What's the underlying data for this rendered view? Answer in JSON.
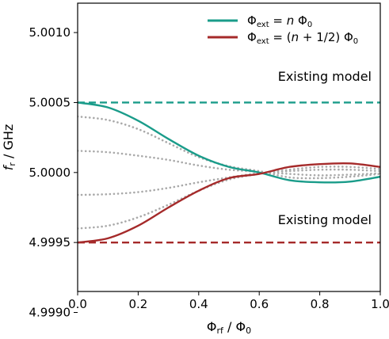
{
  "chart_data": {
    "type": "line",
    "xlabel": "Φrf / Φ0",
    "ylabel": "fr / GHz",
    "xlim": [
      0.0,
      1.0
    ],
    "ylim": [
      4.99915,
      5.00121
    ],
    "x_ticks": [
      "0.0",
      "0.2",
      "0.4",
      "0.6",
      "0.8",
      "1.0"
    ],
    "y_ticks": [
      "4.9990",
      "4.9995",
      "5.0000",
      "5.0005",
      "5.0010"
    ],
    "x_tick_values": [
      0.0,
      0.2,
      0.4,
      0.6,
      0.8,
      1.0
    ],
    "y_tick_values": [
      4.999,
      4.9995,
      5.0,
      5.0005,
      5.001
    ],
    "grid": false,
    "legend_position": "top-right",
    "colors": {
      "teal": "#1a9c8a",
      "red": "#a52a2a",
      "gray": "#a9a9a9"
    },
    "x": [
      0.0,
      0.1,
      0.2,
      0.3,
      0.4,
      0.5,
      0.6,
      0.7,
      0.8,
      0.9,
      1.0
    ],
    "series": [
      {
        "name": "Φext = n Φ0",
        "style": "solid",
        "color": "#1a9c8a",
        "legend": true,
        "values": [
          5.0005,
          5.000465,
          5.00037,
          5.00024,
          5.00012,
          5.00004,
          5.0,
          4.999945,
          4.99993,
          4.999935,
          4.99997
        ]
      },
      {
        "name": "Φext = (n + 1/2) Φ0",
        "style": "solid",
        "color": "#a52a2a",
        "legend": true,
        "values": [
          4.9995,
          4.99953,
          4.99962,
          4.99975,
          4.99987,
          4.99996,
          4.99999,
          5.00004,
          5.00006,
          5.000065,
          5.00004
        ]
      },
      {
        "style": "dotted",
        "color": "#a9a9a9",
        "legend": false,
        "values": [
          5.0004,
          5.000375,
          5.00031,
          5.00021,
          5.00011,
          5.000045,
          5.00001,
          4.999965,
          4.99996,
          4.99997,
          4.99999
        ]
      },
      {
        "style": "dotted",
        "color": "#a9a9a9",
        "legend": false,
        "values": [
          5.000155,
          5.000145,
          5.00012,
          5.00009,
          5.00005,
          5.00002,
          5.000005,
          4.99999,
          4.99998,
          4.999985,
          4.999995
        ]
      },
      {
        "style": "dotted",
        "color": "#a9a9a9",
        "legend": false,
        "values": [
          4.99984,
          4.999845,
          4.99986,
          4.99989,
          4.99993,
          4.999965,
          4.999995,
          5.00001,
          5.00002,
          5.00002,
          5.00001
        ]
      },
      {
        "style": "dotted",
        "color": "#a9a9a9",
        "legend": false,
        "values": [
          4.9996,
          4.99962,
          4.99968,
          4.99977,
          4.99987,
          4.99995,
          4.99999,
          5.00002,
          5.00004,
          5.00004,
          5.000025
        ]
      }
    ],
    "reference_lines": [
      {
        "y": 5.0005,
        "color": "#1a9c8a",
        "style": "dashed",
        "label": "Existing model"
      },
      {
        "y": 4.9995,
        "color": "#a52a2a",
        "style": "dashed",
        "label": "Existing model"
      }
    ]
  }
}
